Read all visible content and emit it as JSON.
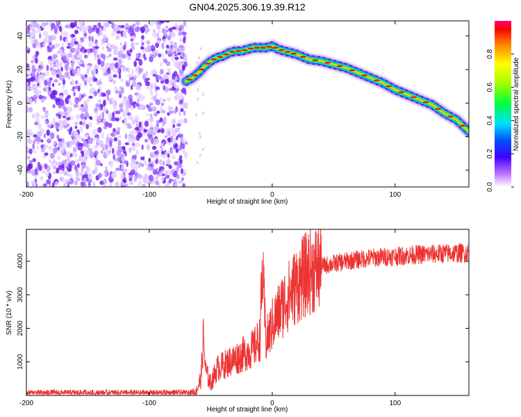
{
  "title": "GN04.2025.306.19.39.R12",
  "chart_data": [
    {
      "type": "heatmap",
      "xlabel": "Height of straight line (km)",
      "ylabel": "Frequency (Hz)",
      "xlim": [
        -200,
        160
      ],
      "ylim": [
        -50,
        49
      ],
      "xticks": [
        -200,
        -100,
        0,
        100
      ],
      "yticks": [
        -40,
        -20,
        0,
        20,
        40
      ],
      "noise_region_x": [
        -200,
        -70
      ],
      "ridge": {
        "x": [
          -70,
          -65,
          -60,
          -55,
          -50,
          -45,
          -40,
          -35,
          -30,
          -25,
          -20,
          -15,
          -10,
          -5,
          0,
          5,
          10,
          15,
          20,
          30,
          40,
          50,
          60,
          70,
          80,
          90,
          100,
          110,
          120,
          130,
          140,
          150,
          160
        ],
        "y": [
          13,
          15,
          18,
          22,
          25,
          27,
          28,
          30,
          31,
          31,
          32,
          33,
          33,
          33,
          34,
          32,
          31,
          30,
          29,
          26,
          25,
          23,
          21,
          18,
          15,
          12,
          8,
          5,
          2,
          -1,
          -6,
          -10,
          -17
        ]
      },
      "colorbar": {
        "label": "Normalized spectral amplitude",
        "ticks": [
          "0.0",
          "0.2",
          "0.4",
          "0.6",
          "0.8"
        ],
        "range": [
          0,
          1
        ]
      }
    },
    {
      "type": "line",
      "xlabel": "Height of straight line (km)",
      "ylabel": "SNR (10 * v/v)",
      "xlim": [
        -200,
        160
      ],
      "ylim": [
        0,
        4950
      ],
      "xticks": [
        -200,
        -100,
        0,
        100
      ],
      "yticks": [
        1000,
        2000,
        3000,
        4000
      ],
      "color": "#ee3333",
      "series": [
        {
          "name": "SNR",
          "x": [
            -200,
            -70,
            -62,
            -58,
            -56,
            -54,
            -50,
            -45,
            -40,
            -30,
            -20,
            -15,
            -10,
            -8,
            -5,
            0,
            10,
            20,
            30,
            40,
            60,
            80,
            100,
            120,
            140,
            160
          ],
          "y": [
            80,
            80,
            100,
            500,
            1700,
            700,
            350,
            800,
            900,
            1100,
            1300,
            1400,
            1700,
            3700,
            1600,
            2100,
            2800,
            3300,
            3700,
            3850,
            4000,
            4100,
            4150,
            4200,
            4230,
            4250
          ]
        }
      ]
    }
  ]
}
